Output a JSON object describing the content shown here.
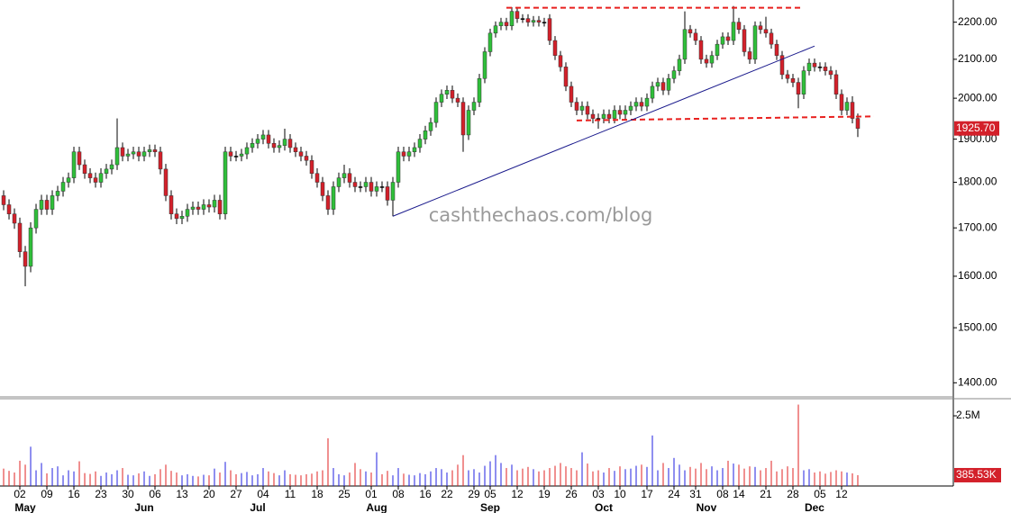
{
  "chart_data": {
    "type": "candlestick",
    "log_scale": true,
    "ylim": [
      1377,
      2262
    ],
    "yticks": [
      {
        "value": 1400,
        "label": "1400.00"
      },
      {
        "value": 1500,
        "label": "1500.00"
      },
      {
        "value": 1600,
        "label": "1600.00"
      },
      {
        "value": 1700,
        "label": "1700.00"
      },
      {
        "value": 1800,
        "label": "1800.00"
      },
      {
        "value": 1900,
        "label": "1900.00"
      },
      {
        "value": 2000,
        "label": "2000.00"
      },
      {
        "value": 2100,
        "label": "2100.00"
      },
      {
        "value": 2200,
        "label": "2200.00"
      }
    ],
    "xlim": [
      -0.67,
      175.67
    ],
    "xticks": [
      {
        "value": 3,
        "label": "02"
      },
      {
        "value": 8,
        "label": "09"
      },
      {
        "value": 13,
        "label": "16"
      },
      {
        "value": 18,
        "label": "23"
      },
      {
        "value": 23,
        "label": "30"
      },
      {
        "value": 28,
        "label": "06"
      },
      {
        "value": 33,
        "label": "13"
      },
      {
        "value": 38,
        "label": "20"
      },
      {
        "value": 43,
        "label": "27"
      },
      {
        "value": 48,
        "label": "04"
      },
      {
        "value": 53,
        "label": "11"
      },
      {
        "value": 58,
        "label": "18"
      },
      {
        "value": 63,
        "label": "25"
      },
      {
        "value": 68,
        "label": "01"
      },
      {
        "value": 73,
        "label": "08"
      },
      {
        "value": 78,
        "label": "16"
      },
      {
        "value": 82,
        "label": "22"
      },
      {
        "value": 87,
        "label": "29"
      },
      {
        "value": 90,
        "label": "05"
      },
      {
        "value": 95,
        "label": "12"
      },
      {
        "value": 100,
        "label": "19"
      },
      {
        "value": 105,
        "label": "26"
      },
      {
        "value": 110,
        "label": "03"
      },
      {
        "value": 114,
        "label": "10"
      },
      {
        "value": 119,
        "label": "17"
      },
      {
        "value": 124,
        "label": "24"
      },
      {
        "value": 128,
        "label": "31"
      },
      {
        "value": 133,
        "label": "08"
      },
      {
        "value": 136,
        "label": "14"
      },
      {
        "value": 141,
        "label": "21"
      },
      {
        "value": 146,
        "label": "28"
      },
      {
        "value": 151,
        "label": "05"
      },
      {
        "value": 155,
        "label": "12"
      }
    ],
    "month_ticks": [
      {
        "value": 4,
        "label": "May"
      },
      {
        "value": 26,
        "label": "Jun"
      },
      {
        "value": 47,
        "label": "Jul"
      },
      {
        "value": 69,
        "label": "Aug"
      },
      {
        "value": 90,
        "label": "Sep"
      },
      {
        "value": 111,
        "label": "Oct"
      },
      {
        "value": 130,
        "label": "Nov"
      },
      {
        "value": 150,
        "label": "Dec"
      }
    ],
    "up_color": "#2fbf3a",
    "down_color": "#d3202a",
    "open": [
      1770,
      1750,
      1730,
      1710,
      1650,
      1620,
      1700,
      1740,
      1760,
      1740,
      1770,
      1780,
      1800,
      1810,
      1870,
      1840,
      1820,
      1810,
      1800,
      1820,
      1830,
      1840,
      1880,
      1860,
      1865,
      1870,
      1860,
      1870,
      1875,
      1870,
      1830,
      1770,
      1730,
      1720,
      1725,
      1740,
      1745,
      1740,
      1750,
      1745,
      1760,
      1730,
      1870,
      1860,
      1860,
      1865,
      1880,
      1890,
      1900,
      1910,
      1890,
      1880,
      1885,
      1900,
      1880,
      1870,
      1860,
      1850,
      1820,
      1800,
      1770,
      1740,
      1790,
      1810,
      1820,
      1800,
      1790,
      1790,
      1800,
      1780,
      1790,
      1790,
      1760,
      1800,
      1870,
      1860,
      1870,
      1880,
      1900,
      1920,
      1940,
      1990,
      2010,
      2020,
      2000,
      1990,
      1910,
      1970,
      1990,
      2050,
      2120,
      2170,
      2190,
      2200,
      2190,
      2230,
      2210,
      2210,
      2200,
      2205,
      2200,
      2210,
      2150,
      2110,
      2080,
      2030,
      1990,
      1970,
      1980,
      1960,
      1950,
      1950,
      1960,
      1950,
      1970,
      1960,
      1970,
      1980,
      1990,
      1980,
      2000,
      2030,
      2040,
      2020,
      2050,
      2070,
      2100,
      2180,
      2170,
      2150,
      2100,
      2090,
      2110,
      2140,
      2160,
      2150,
      2200,
      2180,
      2120,
      2100,
      2190,
      2180,
      2170,
      2140,
      2110,
      2060,
      2050,
      2040,
      2010,
      2070,
      2090,
      2080,
      2080,
      2070,
      2060,
      2010,
      1970,
      1990,
      1950
    ],
    "high": [
      1782,
      1762,
      1742,
      1722,
      1662,
      1712,
      1752,
      1772,
      1772,
      1782,
      1792,
      1812,
      1822,
      1882,
      1882,
      1852,
      1832,
      1822,
      1832,
      1842,
      1852,
      1950,
      1892,
      1877,
      1882,
      1882,
      1882,
      1887,
      1887,
      1882,
      1842,
      1782,
      1742,
      1737,
      1752,
      1757,
      1757,
      1762,
      1762,
      1772,
      1772,
      1882,
      1882,
      1872,
      1877,
      1892,
      1902,
      1912,
      1922,
      1922,
      1902,
      1897,
      1925,
      1912,
      1892,
      1882,
      1872,
      1862,
      1832,
      1812,
      1782,
      1802,
      1822,
      1840,
      1832,
      1812,
      1802,
      1812,
      1812,
      1802,
      1802,
      1802,
      1812,
      1882,
      1882,
      1882,
      1892,
      1912,
      1932,
      1952,
      2002,
      2022,
      2032,
      2032,
      2012,
      2002,
      1982,
      2002,
      2062,
      2132,
      2182,
      2202,
      2212,
      2212,
      2242,
      2242,
      2222,
      2222,
      2217,
      2217,
      2212,
      2222,
      2162,
      2122,
      2092,
      2042,
      2002,
      1992,
      1992,
      1972,
      1962,
      1972,
      1972,
      1982,
      1982,
      1982,
      1992,
      2002,
      2002,
      2012,
      2042,
      2052,
      2052,
      2062,
      2082,
      2112,
      2230,
      2192,
      2182,
      2162,
      2112,
      2122,
      2152,
      2172,
      2172,
      2245,
      2212,
      2192,
      2132,
      2202,
      2202,
      2215,
      2182,
      2152,
      2122,
      2072,
      2062,
      2052,
      2082,
      2102,
      2102,
      2092,
      2092,
      2082,
      2072,
      2022,
      2002,
      2005,
      1962
    ],
    "low": [
      1738,
      1718,
      1698,
      1638,
      1580,
      1608,
      1688,
      1728,
      1728,
      1728,
      1758,
      1768,
      1788,
      1798,
      1828,
      1808,
      1798,
      1788,
      1788,
      1808,
      1818,
      1828,
      1848,
      1848,
      1853,
      1848,
      1848,
      1858,
      1858,
      1818,
      1758,
      1718,
      1708,
      1708,
      1713,
      1728,
      1728,
      1728,
      1733,
      1733,
      1718,
      1718,
      1848,
      1848,
      1848,
      1853,
      1868,
      1878,
      1888,
      1878,
      1868,
      1868,
      1873,
      1868,
      1858,
      1848,
      1838,
      1808,
      1788,
      1758,
      1728,
      1728,
      1778,
      1798,
      1788,
      1778,
      1778,
      1778,
      1768,
      1768,
      1778,
      1748,
      1725,
      1788,
      1848,
      1848,
      1858,
      1868,
      1888,
      1908,
      1928,
      1978,
      1998,
      1988,
      1978,
      1870,
      1898,
      1958,
      1978,
      2038,
      2108,
      2158,
      2178,
      2178,
      2178,
      2198,
      2198,
      2188,
      2188,
      2188,
      2188,
      2138,
      2098,
      2068,
      2018,
      1978,
      1958,
      1958,
      1948,
      1938,
      1925,
      1938,
      1938,
      1938,
      1948,
      1948,
      1958,
      1968,
      1968,
      1968,
      1988,
      2018,
      2008,
      2008,
      2038,
      2058,
      2088,
      2158,
      2138,
      2088,
      2078,
      2078,
      2098,
      2128,
      2138,
      2138,
      2168,
      2108,
      2088,
      2088,
      2168,
      2158,
      2128,
      2098,
      2048,
      2038,
      2028,
      1975,
      1998,
      2058,
      2068,
      2068,
      2058,
      2048,
      1998,
      1958,
      1958,
      1938,
      1905
    ],
    "close": [
      1750,
      1730,
      1710,
      1650,
      1620,
      1700,
      1740,
      1760,
      1740,
      1770,
      1780,
      1800,
      1810,
      1870,
      1840,
      1820,
      1810,
      1800,
      1820,
      1830,
      1840,
      1880,
      1860,
      1865,
      1870,
      1860,
      1870,
      1875,
      1870,
      1830,
      1770,
      1730,
      1720,
      1725,
      1740,
      1745,
      1740,
      1750,
      1745,
      1760,
      1730,
      1870,
      1860,
      1860,
      1865,
      1880,
      1890,
      1900,
      1910,
      1890,
      1880,
      1885,
      1900,
      1880,
      1870,
      1860,
      1850,
      1820,
      1800,
      1770,
      1740,
      1790,
      1810,
      1820,
      1800,
      1790,
      1790,
      1800,
      1780,
      1790,
      1790,
      1760,
      1800,
      1870,
      1860,
      1870,
      1880,
      1900,
      1920,
      1940,
      1990,
      2010,
      2020,
      2000,
      1990,
      1910,
      1970,
      1990,
      2050,
      2120,
      2170,
      2190,
      2200,
      2190,
      2230,
      2210,
      2210,
      2200,
      2205,
      2200,
      2200,
      2150,
      2110,
      2080,
      2030,
      1990,
      1970,
      1980,
      1960,
      1950,
      1950,
      1960,
      1950,
      1970,
      1960,
      1970,
      1980,
      1990,
      1980,
      2000,
      2030,
      2040,
      2020,
      2050,
      2070,
      2100,
      2180,
      2170,
      2150,
      2100,
      2090,
      2110,
      2140,
      2160,
      2150,
      2200,
      2180,
      2120,
      2100,
      2190,
      2180,
      2170,
      2140,
      2110,
      2060,
      2050,
      2040,
      2010,
      2070,
      2090,
      2080,
      2080,
      2070,
      2060,
      2010,
      1970,
      1990,
      1950,
      1925.7
    ],
    "last_close_label": "1925.70",
    "watermark": "cashthechaos.com/blog",
    "lines": [
      {
        "x": [
          93,
          148
        ],
        "y": [
          2240,
          2240
        ],
        "color": "#e8201e",
        "dash": true
      },
      {
        "x": [
          106,
          161
        ],
        "y": [
          1945,
          1955
        ],
        "color": "#e8201e",
        "dash": true
      },
      {
        "x": [
          72,
          150
        ],
        "y": [
          1725,
          2135
        ],
        "color": "#1a1a8c",
        "dash": false
      }
    ],
    "volume": {
      "ylim": [
        0,
        3110000
      ],
      "yticks": [
        {
          "value": 2500000,
          "label": "2.5M"
        }
      ],
      "up_color": "#1f1fe0",
      "down_color": "#e02020",
      "last_label": "385.53K",
      "values": [
        620000,
        540000,
        480000,
        900000,
        760000,
        1400000,
        560000,
        820000,
        450000,
        640000,
        700000,
        380000,
        560000,
        520000,
        880000,
        460000,
        430000,
        520000,
        360000,
        480000,
        420000,
        560000,
        640000,
        400000,
        380000,
        450000,
        520000,
        360000,
        420000,
        600000,
        760000,
        540000,
        480000,
        380000,
        420000,
        360000,
        340000,
        400000,
        380000,
        620000,
        480000,
        860000,
        560000,
        420000,
        460000,
        500000,
        380000,
        420000,
        640000,
        520000,
        460000,
        380000,
        560000,
        420000,
        400000,
        380000,
        420000,
        440000,
        520000,
        560000,
        1700000,
        640000,
        420000,
        380000,
        480000,
        820000,
        600000,
        520000,
        480000,
        1200000,
        420000,
        540000,
        380000,
        640000,
        440000,
        400000,
        380000,
        460000,
        420000,
        520000,
        640000,
        600000,
        480000,
        560000,
        760000,
        1100000,
        560000,
        600000,
        480000,
        720000,
        880000,
        1100000,
        820000,
        640000,
        760000,
        560000,
        620000,
        680000,
        600000,
        520000,
        560000,
        640000,
        720000,
        820000,
        700000,
        640000,
        560000,
        1200000,
        800000,
        520000,
        560000,
        480000,
        640000,
        540000,
        700000,
        600000,
        620000,
        720000,
        760000,
        680000,
        1800000,
        560000,
        820000,
        640000,
        1000000,
        760000,
        560000,
        680000,
        620000,
        820000,
        600000,
        700000,
        560000,
        640000,
        900000,
        800000,
        760000,
        620000,
        700000,
        680000,
        560000,
        640000,
        900000,
        520000,
        600000,
        700000,
        640000,
        2900000,
        560000,
        600000,
        480000,
        520000,
        440000,
        500000,
        560000,
        520000,
        480000,
        450000,
        385530
      ]
    }
  }
}
